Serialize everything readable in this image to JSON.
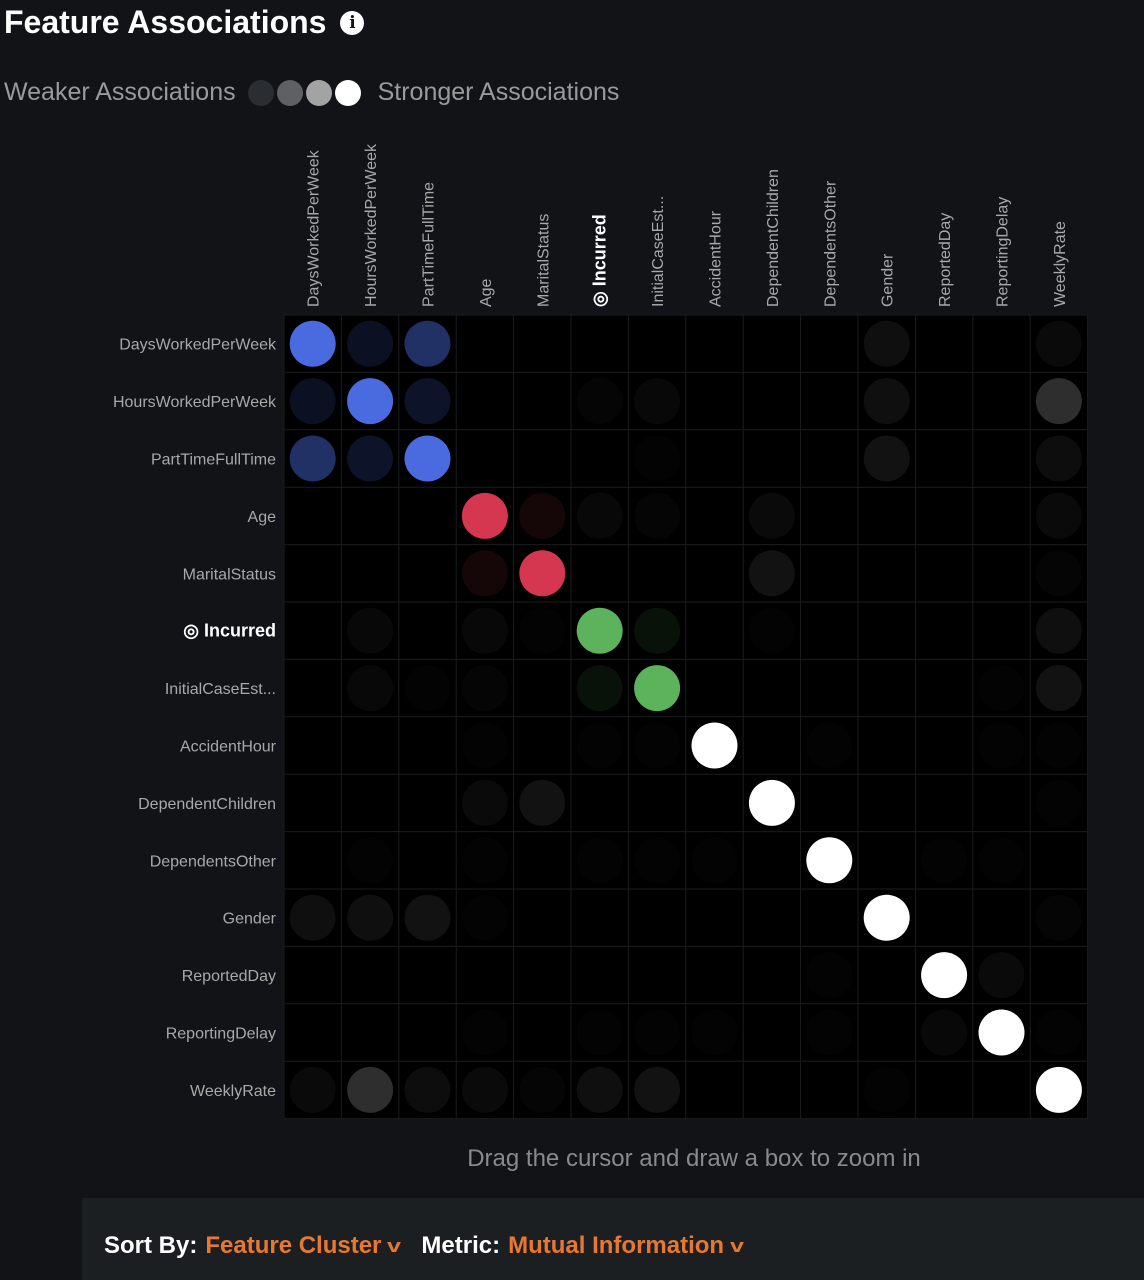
{
  "header": {
    "title": "Feature Associations",
    "info_icon": "info-icon"
  },
  "legend": {
    "weaker": "Weaker Associations",
    "stronger": "Stronger Associations",
    "swatches": [
      "#2a2d31",
      "#5f6063",
      "#a3a3a3",
      "#ffffff"
    ]
  },
  "hint": "Drag the cursor and draw a box to zoom in",
  "controls": {
    "sort_label": "Sort By:",
    "sort_value": "Feature Cluster",
    "metric_label": "Metric:",
    "metric_value": "Mutual Information"
  },
  "chart_data": {
    "type": "heatmap",
    "title": "",
    "target_feature": "Incurred",
    "target_marker": "◎",
    "features": [
      "DaysWorkedPerWeek",
      "HoursWorkedPerWeek",
      "PartTimeFullTime",
      "Age",
      "MaritalStatus",
      "Incurred",
      "InitialCaseEst...",
      "AccidentHour",
      "DependentChildren",
      "DependentsOther",
      "Gender",
      "ReportedDay",
      "ReportingDelay",
      "WeeklyRate"
    ],
    "clusters": [
      {
        "features": [
          "DaysWorkedPerWeek",
          "HoursWorkedPerWeek",
          "PartTimeFullTime"
        ],
        "color": "#4a6ae0"
      },
      {
        "features": [
          "Age",
          "MaritalStatus"
        ],
        "color": "#d63750"
      },
      {
        "features": [
          "Incurred",
          "InitialCaseEst..."
        ],
        "color": "#5db35c"
      }
    ],
    "unclustered_color": "#ffffff",
    "strength": [
      [
        1,
        0.15,
        0.45,
        0,
        0,
        0,
        0,
        0,
        0,
        0,
        0.06,
        0,
        0,
        0.04
      ],
      [
        0.15,
        1,
        0.18,
        0,
        0,
        0.02,
        0.03,
        0,
        0,
        0,
        0.06,
        0,
        0,
        0.18
      ],
      [
        0.45,
        0.18,
        1,
        0,
        0,
        0,
        0.01,
        0,
        0,
        0,
        0.07,
        0,
        0,
        0.05
      ],
      [
        0,
        0,
        0,
        1,
        0.1,
        0.03,
        0.02,
        0,
        0.04,
        0,
        0,
        0,
        0,
        0.04
      ],
      [
        0,
        0,
        0,
        0.1,
        1,
        0,
        0,
        0,
        0.07,
        0,
        0,
        0,
        0,
        0.02
      ],
      [
        0,
        0.03,
        0,
        0.03,
        0.01,
        1,
        0.1,
        0,
        0.01,
        0,
        0,
        0,
        0,
        0.06
      ],
      [
        0,
        0.03,
        0.01,
        0.02,
        0,
        0.1,
        1,
        0,
        0,
        0,
        0,
        0,
        0.01,
        0.07
      ],
      [
        0,
        0,
        0,
        0.01,
        0,
        0.01,
        0.01,
        1,
        0,
        0.01,
        0,
        0,
        0.01,
        0.01
      ],
      [
        0,
        0,
        0,
        0.04,
        0.07,
        0,
        0,
        0,
        1,
        0,
        0,
        0,
        0,
        0.01
      ],
      [
        0,
        0.01,
        0,
        0.01,
        0,
        0.01,
        0.01,
        0.01,
        0,
        1,
        0,
        0.01,
        0.01,
        0
      ],
      [
        0.06,
        0.06,
        0.07,
        0.01,
        0,
        0,
        0,
        0,
        0,
        0,
        1,
        0,
        0,
        0.02
      ],
      [
        0,
        0,
        0,
        0,
        0,
        0,
        0,
        0,
        0,
        0.01,
        0,
        1,
        0.04,
        0
      ],
      [
        0,
        0,
        0,
        0.01,
        0,
        0.01,
        0.01,
        0.01,
        0,
        0.01,
        0,
        0.03,
        1,
        0.01
      ],
      [
        0.04,
        0.18,
        0.05,
        0.04,
        0.02,
        0.06,
        0.07,
        0,
        0,
        0,
        0.01,
        0,
        0,
        1
      ]
    ],
    "scale": "0 = weaker, 1 = stronger"
  }
}
